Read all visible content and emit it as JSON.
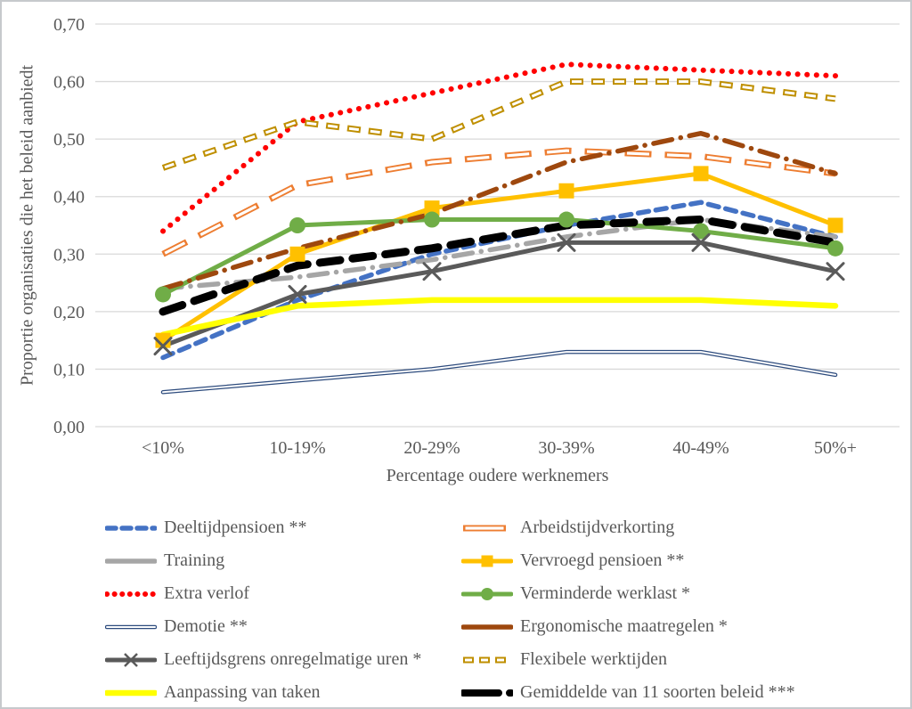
{
  "figure": {
    "background": "#FFFFFF",
    "border_color": "#C6C9CC",
    "grid_color": "#D9D9D9",
    "text_color": "#595959"
  },
  "chart_data": {
    "type": "line",
    "title": "",
    "xlabel": "Percentage oudere werknemers",
    "ylabel": "Proportie organisaties die het beleid aanbiedt",
    "categories": [
      "<10%",
      "10-19%",
      "20-29%",
      "30-39%",
      "40-49%",
      "50%+"
    ],
    "ylim": [
      0.0,
      0.7
    ],
    "y_tick_step": 0.1,
    "y_tick_labels": [
      "0,00",
      "0,10",
      "0,20",
      "0,30",
      "0,40",
      "0,50",
      "0,60",
      "0,70"
    ],
    "decimal_separator": ",",
    "grid": "horizontal",
    "legend_position": "bottom, 2 columns",
    "series": [
      {
        "name": "Deeltijdpensioen **",
        "color": "#4472C4",
        "line": "dashed",
        "marker": "none",
        "values": [
          0.12,
          0.22,
          0.3,
          0.35,
          0.39,
          0.33
        ]
      },
      {
        "name": "Arbeidstijdverkorting",
        "color": "#ED7D31",
        "line": "outlined-longdash",
        "marker": "none",
        "values": [
          0.3,
          0.42,
          0.46,
          0.48,
          0.47,
          0.44
        ]
      },
      {
        "name": "Training",
        "color": "#A6A6A6",
        "line": "dash-dot",
        "marker": "none",
        "values": [
          0.24,
          0.26,
          0.29,
          0.33,
          0.36,
          0.33
        ]
      },
      {
        "name": "Vervroegd pensioen **",
        "color": "#FFC000",
        "line": "solid",
        "marker": "square",
        "values": [
          0.15,
          0.3,
          0.38,
          0.41,
          0.44,
          0.35
        ]
      },
      {
        "name": "Extra verlof",
        "color": "#FF0000",
        "line": "dotted",
        "marker": "none",
        "values": [
          0.34,
          0.53,
          0.58,
          0.63,
          0.62,
          0.61
        ]
      },
      {
        "name": "Verminderde werklast *",
        "color": "#70AD47",
        "line": "solid",
        "marker": "circle",
        "values": [
          0.23,
          0.35,
          0.36,
          0.36,
          0.34,
          0.31
        ]
      },
      {
        "name": "Demotie **",
        "color": "#2D4B7D",
        "line": "outlined-solid",
        "marker": "none",
        "values": [
          0.06,
          0.08,
          0.1,
          0.13,
          0.13,
          0.09
        ]
      },
      {
        "name": "Ergonomische maatregelen *",
        "color": "#9E480E",
        "line": "dash-dot",
        "marker": "none",
        "values": [
          0.24,
          0.31,
          0.37,
          0.46,
          0.51,
          0.44
        ]
      },
      {
        "name": "Leeftijdsgrens onregelmatige uren *",
        "color": "#5A5A5A",
        "line": "solid",
        "marker": "x",
        "values": [
          0.14,
          0.23,
          0.27,
          0.32,
          0.32,
          0.27
        ]
      },
      {
        "name": "Flexibele werktijden",
        "color": "#BF8F00",
        "line": "outlined-dash",
        "marker": "none",
        "values": [
          0.45,
          0.53,
          0.5,
          0.6,
          0.6,
          0.57
        ]
      },
      {
        "name": "Aanpassing van taken",
        "color": "#FFFF00",
        "line": "solid-thick",
        "marker": "none",
        "values": [
          0.16,
          0.21,
          0.22,
          0.22,
          0.22,
          0.21
        ]
      },
      {
        "name": "Gemiddelde van 11 soorten beleid ***",
        "color": "#000000",
        "line": "thick-dashed",
        "marker": "none",
        "values": [
          0.2,
          0.28,
          0.31,
          0.35,
          0.36,
          0.32
        ]
      }
    ]
  }
}
